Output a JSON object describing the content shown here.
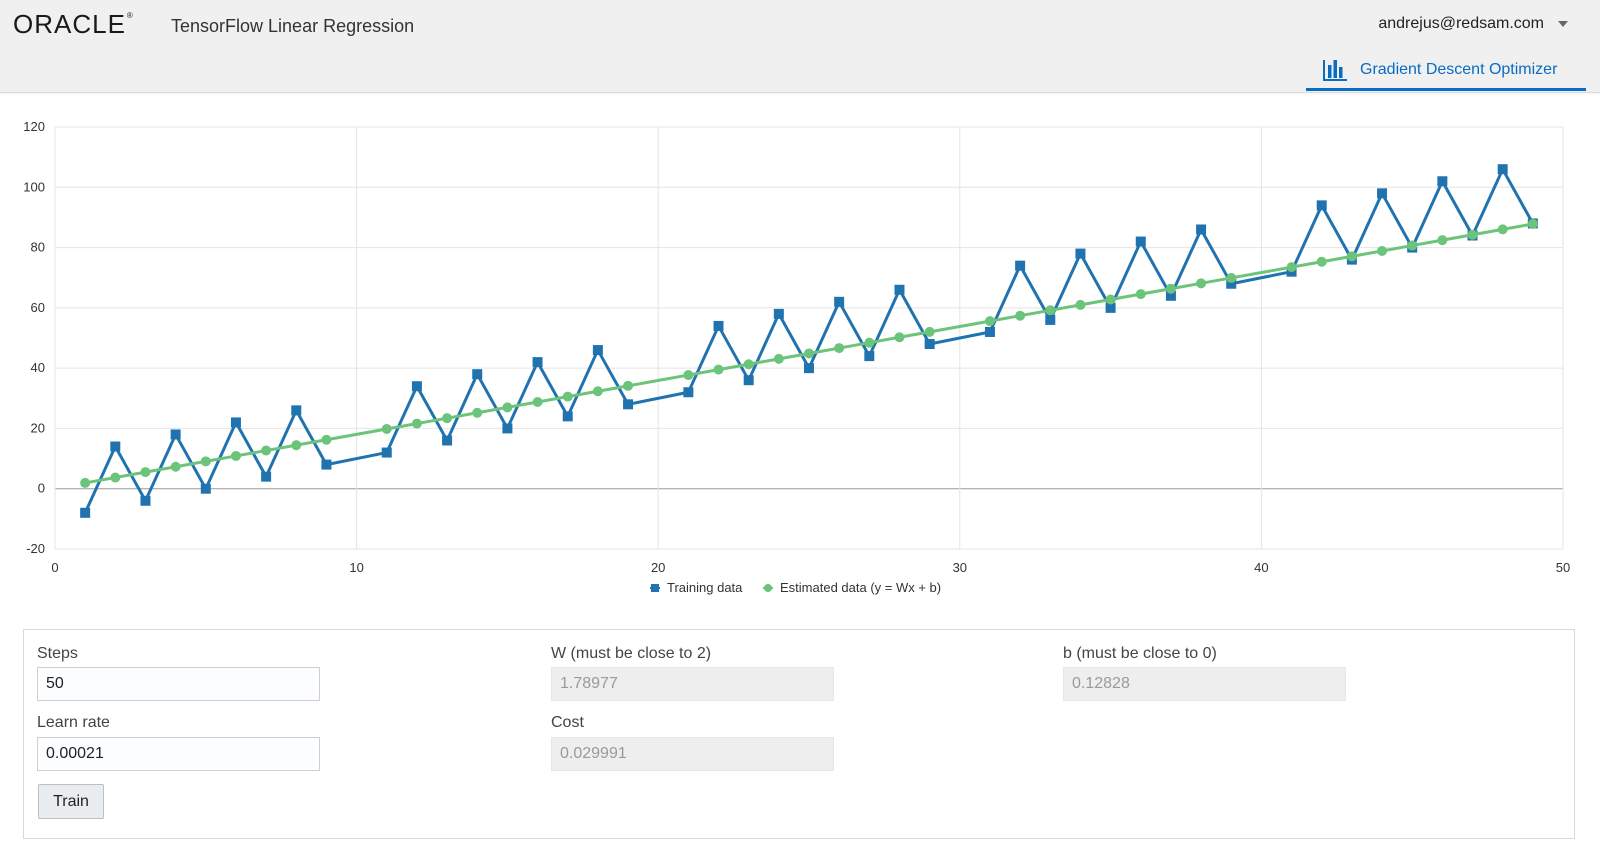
{
  "header": {
    "logo_text": "ORACLE",
    "app_title": "TensorFlow Linear Regression",
    "user": "andrejus@redsam.com",
    "tab_label": "Gradient Descent Optimizer"
  },
  "colors": {
    "accent": "#0a6bc2",
    "training": "#2173b0",
    "estimated": "#6cc47b"
  },
  "chart_data": {
    "type": "line",
    "title": "",
    "xlabel": "",
    "ylabel": "",
    "xlim": [
      0,
      50
    ],
    "ylim": [
      -20,
      120
    ],
    "x_ticks": [
      0,
      10,
      20,
      30,
      40,
      50
    ],
    "y_ticks": [
      -20,
      0,
      20,
      40,
      60,
      80,
      100,
      120
    ],
    "grid": true,
    "legend_position": "bottom",
    "series": [
      {
        "name": "Training data",
        "marker": "square",
        "x": [
          1,
          2,
          3,
          4,
          5,
          6,
          7,
          8,
          9,
          11,
          12,
          13,
          14,
          15,
          16,
          17,
          18,
          19,
          21,
          22,
          23,
          24,
          25,
          26,
          27,
          28,
          29,
          31,
          32,
          33,
          34,
          35,
          36,
          37,
          38,
          39,
          41,
          42,
          43,
          44,
          45,
          46,
          47,
          48,
          49
        ],
        "y": [
          -8,
          14,
          -4,
          18,
          0,
          22,
          4,
          26,
          8,
          12,
          34,
          16,
          38,
          20,
          42,
          24,
          46,
          28,
          32,
          54,
          36,
          58,
          40,
          62,
          44,
          66,
          48,
          52,
          74,
          56,
          78,
          60,
          82,
          64,
          86,
          68,
          72,
          94,
          76,
          98,
          80,
          102,
          84,
          106,
          88
        ]
      },
      {
        "name": "Estimated data (y = Wx + b)",
        "marker": "circle",
        "x": [
          1,
          2,
          3,
          4,
          5,
          6,
          7,
          8,
          9,
          11,
          12,
          13,
          14,
          15,
          16,
          17,
          18,
          19,
          21,
          22,
          23,
          24,
          25,
          26,
          27,
          28,
          29,
          31,
          32,
          33,
          34,
          35,
          36,
          37,
          38,
          39,
          41,
          42,
          43,
          44,
          45,
          46,
          47,
          48,
          49
        ],
        "y": [
          1.92,
          3.71,
          5.5,
          7.29,
          9.08,
          10.87,
          12.66,
          14.45,
          16.24,
          19.82,
          21.61,
          23.4,
          25.19,
          26.98,
          28.76,
          30.55,
          32.34,
          34.13,
          37.71,
          39.5,
          41.29,
          43.08,
          44.87,
          46.66,
          48.45,
          50.24,
          52.03,
          55.61,
          57.4,
          59.19,
          60.98,
          62.77,
          64.56,
          66.35,
          68.14,
          69.93,
          73.51,
          75.3,
          77.09,
          78.88,
          80.67,
          82.46,
          84.25,
          86.04,
          87.83
        ]
      }
    ]
  },
  "form": {
    "steps_label": "Steps",
    "steps_value": "50",
    "learn_rate_label": "Learn rate",
    "learn_rate_value": "0.00021",
    "w_label": "W (must be close to 2)",
    "w_value": "1.78977",
    "cost_label": "Cost",
    "cost_value": "0.029991",
    "b_label": "b (must be close to 0)",
    "b_value": "0.12828",
    "train_label": "Train"
  }
}
